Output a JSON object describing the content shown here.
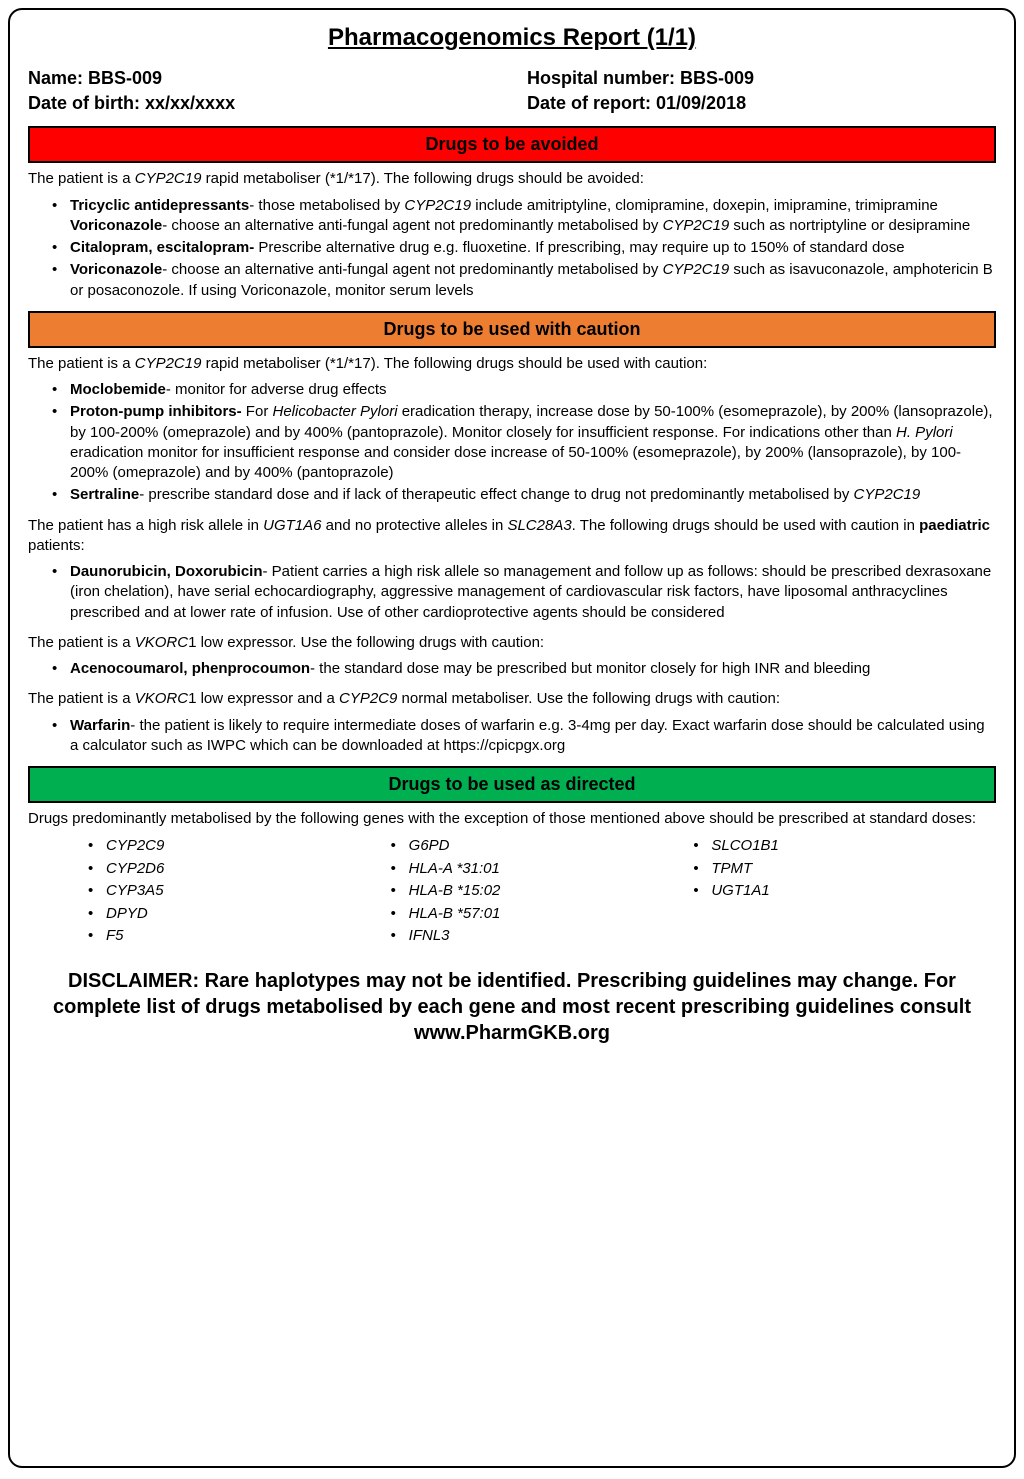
{
  "title": "Pharmacogenomics Report (1/1)",
  "patient": {
    "name_label": "Name: ",
    "name": "BBS-009",
    "dob_label": "Date of birth: ",
    "dob": "xx/xx/xxxx",
    "hospnum_label": "Hospital number: ",
    "hospnum": "BBS-009",
    "reportdate_label": "Date of report: ",
    "reportdate": "01/09/2018"
  },
  "colors": {
    "red": "#ff0000",
    "orange": "#ed7d31",
    "green": "#00b050",
    "border": "#000000",
    "text": "#000000"
  },
  "sections": {
    "avoid": {
      "header": "Drugs to be avoided",
      "intro_pre": "The patient is a ",
      "intro_gene": "CYP2C19",
      "intro_post": " rapid metaboliser (*1/*17). The following drugs should be avoided:",
      "items": [
        {
          "lead": "Tricyclic antidepressants",
          "text_a": "- those metabolised by ",
          "gene_a": "CYP2C19",
          "text_b": " include amitriptyline, clomipramine, doxepin, imipramine, trimipramine ",
          "lead2": "Voriconazole",
          "text_c": "- choose an alternative anti-fungal agent not predominantly metabolised by ",
          "gene_b": "CYP2C19",
          "text_d": " such as nortriptyline or desipramine"
        },
        {
          "lead": "Citalopram, escitalopram-",
          "text_a": " Prescribe alternative drug e.g. fluoxetine. If prescribing, may require up to 150% of standard dose"
        },
        {
          "lead": "Voriconazole",
          "text_a": "- choose an alternative anti-fungal agent not predominantly metabolised by ",
          "gene_a": "CYP2C19",
          "text_b": " such as isavuconazole, amphotericin B or posaconozole. If using Voriconazole, monitor serum levels"
        }
      ]
    },
    "caution": {
      "header": "Drugs to be used with caution",
      "block1": {
        "intro_pre": "The patient is a ",
        "intro_gene": "CYP2C19",
        "intro_post": " rapid metaboliser (*1/*17). The following drugs should be used with caution:",
        "items": [
          {
            "lead": "Moclobemide",
            "text_a": "- monitor for adverse drug effects"
          },
          {
            "lead": "Proton-pump inhibitors-",
            "text_a": " For ",
            "ital_a": "Helicobacter Pylori",
            "text_b": " eradication therapy, increase dose by 50-100% (esomeprazole), by 200% (lansoprazole), by 100-200% (omeprazole) and by 400% (pantoprazole). Monitor closely for insufficient response. For indications other than ",
            "ital_b": "H. Pylori",
            "text_c": " eradication monitor for insufficient response and consider dose increase of 50-100% (esomeprazole), by 200% (lansoprazole), by 100-200% (omeprazole) and by 400% (pantoprazole)"
          },
          {
            "lead": "Sertraline",
            "text_a": "- prescribe standard dose and if lack of therapeutic effect change to drug not predominantly metabolised by ",
            "gene_a": "CYP2C19"
          }
        ]
      },
      "block2": {
        "intro_pre": "The patient has a high risk allele in ",
        "intro_gene_a": "UGT1A6",
        "intro_mid": " and no protective alleles in ",
        "intro_gene_b": "SLC28A3",
        "intro_post_a": ". The following drugs should be used with caution in ",
        "intro_bold": "paediatric",
        "intro_post_b": " patients:",
        "items": [
          {
            "lead": "Daunorubicin, Doxorubicin",
            "text_a": "- Patient carries a high risk allele so management and follow up as follows: should be prescribed dexrasoxane (iron chelation), have serial echocardiography, aggressive management of cardiovascular risk factors, have liposomal anthracyclines prescribed and at lower rate of infusion. Use of other cardioprotective agents should be considered"
          }
        ]
      },
      "block3": {
        "intro_pre": "The patient is a ",
        "intro_gene": "VKORC",
        "intro_post": "1 low expressor. Use the following drugs with caution:",
        "items": [
          {
            "lead": "Acenocoumarol, phenprocoumon",
            "text_a": "- the standard dose may be prescribed but monitor closely for high INR and bleeding"
          }
        ]
      },
      "block4": {
        "intro_pre": "The patient is a ",
        "intro_gene_a": "VKORC",
        "intro_mid": "1 low expressor and a ",
        "intro_gene_b": "CYP2C9",
        "intro_post": " normal metaboliser. Use the following drugs with caution:",
        "items": [
          {
            "lead": "Warfarin",
            "text_a": "- the patient is likely to require intermediate doses of warfarin e.g. 3-4mg per day. Exact warfarin dose should be calculated using a calculator such as IWPC which can be downloaded at https://cpicpgx.org"
          }
        ]
      }
    },
    "directed": {
      "header": "Drugs to be used as directed",
      "intro": "Drugs predominantly metabolised by the following genes with the exception of those mentioned above should be prescribed at standard doses:",
      "genes_col1": [
        "CYP2C9",
        "CYP2D6",
        "CYP3A5",
        "DPYD",
        "F5"
      ],
      "genes_col2": [
        "G6PD",
        "HLA-A *31:01",
        "HLA-B *15:02",
        "HLA-B *57:01",
        "IFNL3"
      ],
      "genes_col3": [
        "SLCO1B1",
        "TPMT",
        "UGT1A1"
      ]
    }
  },
  "disclaimer": "DISCLAIMER: Rare haplotypes may not be identified. Prescribing guidelines may change. For complete list of  drugs metabolised by each gene and most recent prescribing guidelines consult www.PharmGKB.org"
}
